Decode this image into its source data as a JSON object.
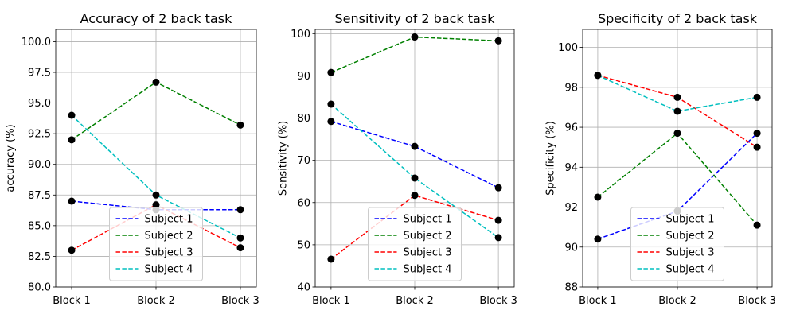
{
  "chart_data": [
    {
      "type": "line",
      "title": "Accuracy of 2 back task",
      "xlabel": "",
      "ylabel": "accuracy (%)",
      "categories": [
        "Block 1",
        "Block 2",
        "Block 3"
      ],
      "ylim": [
        80,
        101
      ],
      "yticks": [
        80.0,
        82.5,
        85.0,
        87.5,
        90.0,
        92.5,
        95.0,
        97.5,
        100.0
      ],
      "ytick_labels": [
        "80.0",
        "82.5",
        "85.0",
        "87.5",
        "90.0",
        "92.5",
        "95.0",
        "97.5",
        "100.0"
      ],
      "grid": true,
      "legend_position": "lower-center",
      "series": [
        {
          "name": "Subject 1",
          "color": "#0000ff",
          "values": [
            87.0,
            86.3,
            86.3
          ]
        },
        {
          "name": "Subject 2",
          "color": "#008000",
          "values": [
            92.0,
            96.7,
            93.2
          ]
        },
        {
          "name": "Subject 3",
          "color": "#ff0000",
          "values": [
            83.0,
            86.7,
            83.2
          ]
        },
        {
          "name": "Subject 4",
          "color": "#00bfbf",
          "values": [
            94.0,
            87.5,
            84.0
          ]
        }
      ]
    },
    {
      "type": "line",
      "title": "Sensitivity of 2 back task",
      "xlabel": "",
      "ylabel": "Sensitivity (%)",
      "categories": [
        "Block 1",
        "Block 2",
        "Block 3"
      ],
      "ylim": [
        40,
        101
      ],
      "yticks": [
        40,
        50,
        60,
        70,
        80,
        90,
        100
      ],
      "ytick_labels": [
        "40",
        "50",
        "60",
        "70",
        "80",
        "90",
        "100"
      ],
      "grid": true,
      "legend_position": "lower-center",
      "series": [
        {
          "name": "Subject 1",
          "color": "#0000ff",
          "values": [
            79.2,
            73.3,
            63.5
          ]
        },
        {
          "name": "Subject 2",
          "color": "#008000",
          "values": [
            90.8,
            99.2,
            98.3
          ]
        },
        {
          "name": "Subject 3",
          "color": "#ff0000",
          "values": [
            46.6,
            61.7,
            55.8
          ]
        },
        {
          "name": "Subject 4",
          "color": "#00bfbf",
          "values": [
            83.3,
            65.8,
            51.7
          ]
        }
      ]
    },
    {
      "type": "line",
      "title": "Specificity of 2 back task",
      "xlabel": "",
      "ylabel": "Specificity (%)",
      "categories": [
        "Block 1",
        "Block 2",
        "Block 3"
      ],
      "ylim": [
        88,
        100.9
      ],
      "yticks": [
        88,
        90,
        92,
        94,
        96,
        98,
        100
      ],
      "ytick_labels": [
        "88",
        "90",
        "92",
        "94",
        "96",
        "98",
        "100"
      ],
      "grid": true,
      "legend_position": "lower-center",
      "series": [
        {
          "name": "Subject 1",
          "color": "#0000ff",
          "values": [
            90.4,
            91.8,
            95.7
          ]
        },
        {
          "name": "Subject 2",
          "color": "#008000",
          "values": [
            92.5,
            95.7,
            91.1
          ]
        },
        {
          "name": "Subject 3",
          "color": "#ff0000",
          "values": [
            98.6,
            97.5,
            95.0
          ]
        },
        {
          "name": "Subject 4",
          "color": "#00bfbf",
          "values": [
            98.6,
            96.8,
            97.5
          ]
        }
      ]
    }
  ],
  "marker_color": "#000000"
}
